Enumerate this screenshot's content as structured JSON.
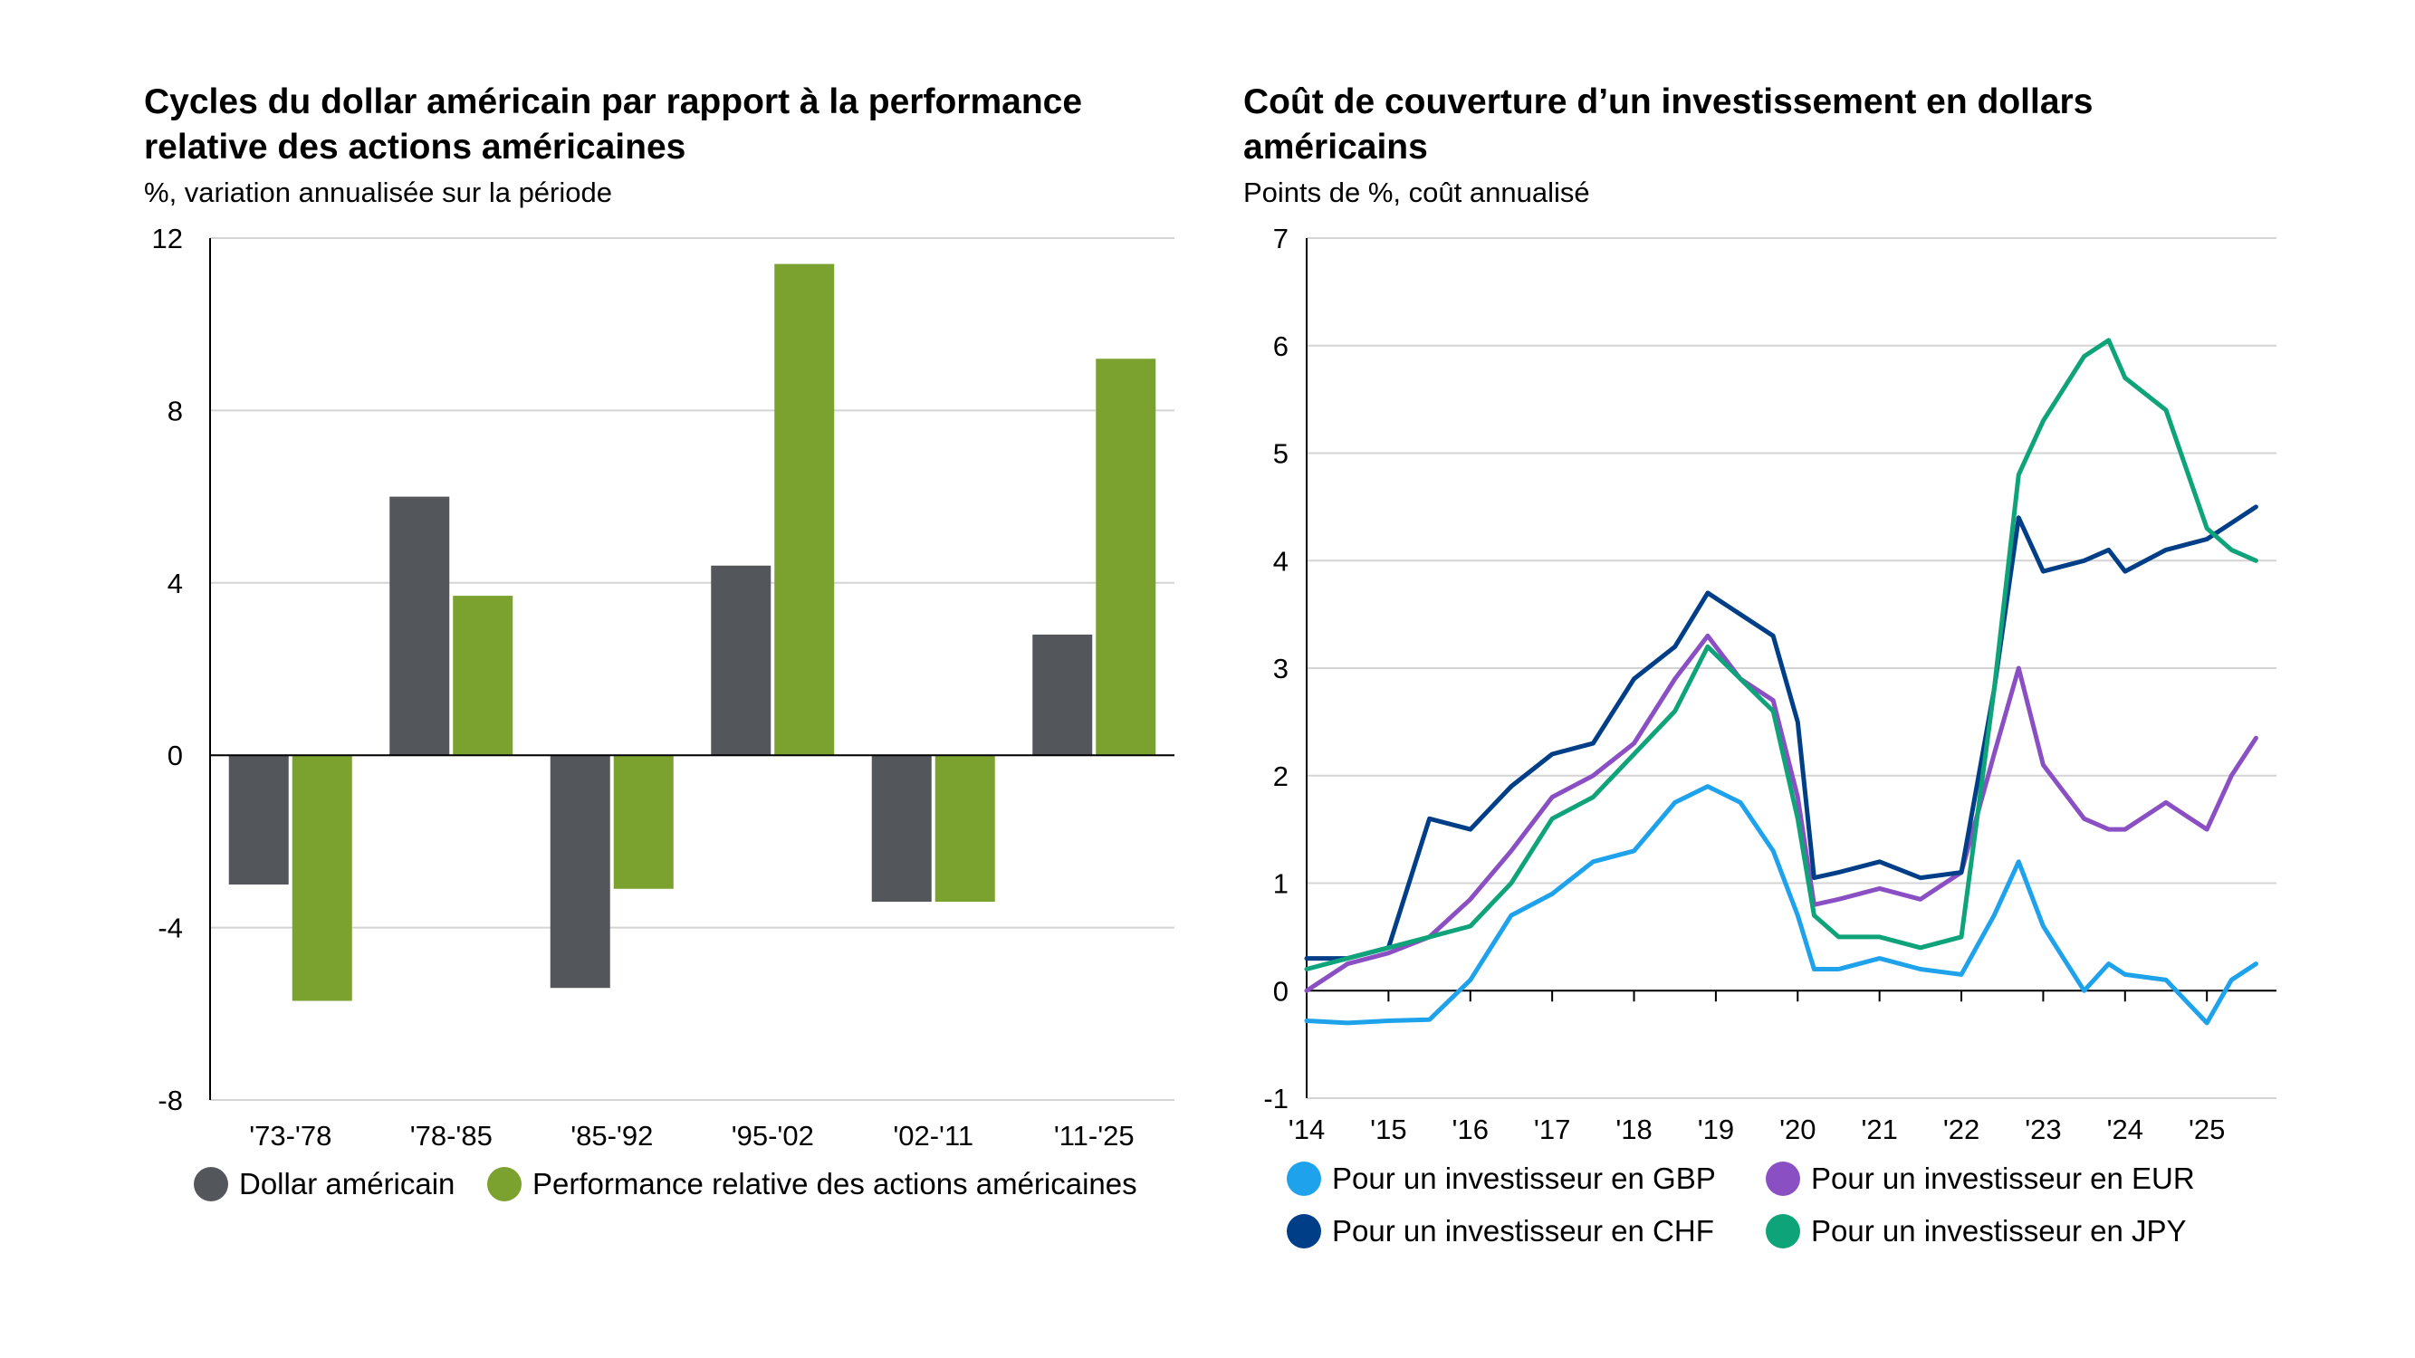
{
  "chart_data": [
    {
      "type": "bar",
      "title": "Cycles du dollar américain par rapport à la performance relative des actions américaines",
      "subtitle": "%, variation annualisée sur la période",
      "categories": [
        "'73-'78",
        "'78-'85",
        "'85-'92",
        "'95-'02",
        "'02-'11",
        "'11-'25"
      ],
      "series": [
        {
          "name": "Dollar américain",
          "color": "#53565a",
          "values": [
            -3.0,
            6.0,
            -5.4,
            4.4,
            -3.4,
            2.8
          ]
        },
        {
          "name": "Performance relative des actions américaines",
          "color": "#7ba12f",
          "values": [
            -5.7,
            3.7,
            -3.1,
            11.4,
            -3.4,
            9.2
          ]
        }
      ],
      "ylim": [
        -8,
        12
      ],
      "yticks": [
        12,
        8,
        4,
        0,
        -4,
        -8
      ],
      "ytick_labels": [
        "12",
        "8",
        "4",
        "0",
        "-4",
        "-8"
      ],
      "grid": true,
      "legend_position": "bottom"
    },
    {
      "type": "line",
      "title": "Coût de couverture d’un investissement en dollars américains",
      "subtitle": "Points de %, coût annualisé",
      "x": [
        2014.0,
        2014.5,
        2015.0,
        2015.5,
        2016.0,
        2016.5,
        2017.0,
        2017.5,
        2018.0,
        2018.5,
        2018.9,
        2019.3,
        2019.7,
        2020.0,
        2020.2,
        2020.5,
        2021.0,
        2021.5,
        2022.0,
        2022.4,
        2022.7,
        2023.0,
        2023.5,
        2023.8,
        2024.0,
        2024.5,
        2025.0,
        2025.3,
        2025.6
      ],
      "series": [
        {
          "name": "Pour un investisseur en GBP",
          "color": "#1ea2ec",
          "values": [
            -0.28,
            -0.3,
            -0.28,
            -0.27,
            0.1,
            0.7,
            0.9,
            1.2,
            1.3,
            1.75,
            1.9,
            1.75,
            1.3,
            0.7,
            0.2,
            0.2,
            0.3,
            0.2,
            0.15,
            0.7,
            1.2,
            0.6,
            0.0,
            0.25,
            0.15,
            0.1,
            -0.3,
            0.1,
            0.25
          ]
        },
        {
          "name": "Pour un investisseur en EUR",
          "color": "#8b4fc4",
          "values": [
            0.0,
            0.25,
            0.35,
            0.5,
            0.85,
            1.3,
            1.8,
            2.0,
            2.3,
            2.9,
            3.3,
            2.9,
            2.7,
            1.8,
            0.8,
            0.85,
            0.95,
            0.85,
            1.1,
            2.2,
            3.0,
            2.1,
            1.6,
            1.5,
            1.5,
            1.75,
            1.5,
            2.0,
            2.35
          ]
        },
        {
          "name": "Pour un investisseur en CHF",
          "color": "#003f87",
          "values": [
            0.3,
            0.3,
            0.4,
            1.6,
            1.5,
            1.9,
            2.2,
            2.3,
            2.9,
            3.2,
            3.7,
            3.5,
            3.3,
            2.5,
            1.05,
            1.1,
            1.2,
            1.05,
            1.1,
            2.8,
            4.4,
            3.9,
            4.0,
            4.1,
            3.9,
            4.1,
            4.2,
            4.35,
            4.5
          ]
        },
        {
          "name": "Pour un investisseur en JPY",
          "color": "#0fa37a",
          "values": [
            0.2,
            0.3,
            0.4,
            0.5,
            0.6,
            1.0,
            1.6,
            1.8,
            2.2,
            2.6,
            3.2,
            2.9,
            2.6,
            1.6,
            0.7,
            0.5,
            0.5,
            0.4,
            0.5,
            2.8,
            4.8,
            5.3,
            5.9,
            6.05,
            5.7,
            5.4,
            4.3,
            4.1,
            4.0
          ]
        }
      ],
      "ylim": [
        -1,
        7
      ],
      "yticks": [
        7,
        6,
        5,
        4,
        3,
        2,
        1,
        0,
        -1
      ],
      "ytick_labels": [
        "7",
        "6",
        "5",
        "4",
        "3",
        "2",
        "1",
        "0",
        "-1"
      ],
      "xlim": [
        2014.0,
        2025.85
      ],
      "xticks": [
        2014,
        2015,
        2016,
        2017,
        2018,
        2019,
        2020,
        2021,
        2022,
        2023,
        2024,
        2025
      ],
      "xtick_labels": [
        "'14",
        "'15",
        "'16",
        "'17",
        "'18",
        "'19",
        "'20",
        "'21",
        "'22",
        "'23",
        "'24",
        "'25"
      ],
      "grid": true,
      "legend_position": "bottom"
    }
  ]
}
